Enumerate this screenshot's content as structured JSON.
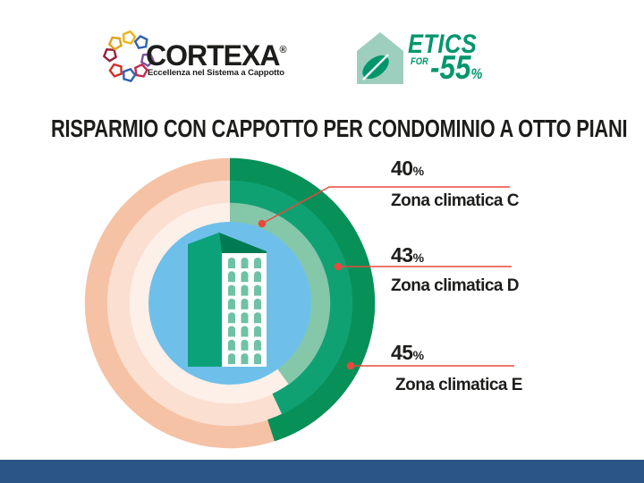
{
  "header": {
    "cortexa": {
      "name": "CORTEXA",
      "registered_mark": "®",
      "tagline": "Eccellenza nel Sistema a Cappotto",
      "pentagon_colors": [
        "#eab51c",
        "#2f62ae",
        "#7c52a1",
        "#c22a50",
        "#2f62ae",
        "#d03028",
        "#971f38",
        "#e0a11b"
      ]
    },
    "etics": {
      "word1": "ETICS",
      "word2": "FOR",
      "word3": "-55",
      "percent_symbol": "%",
      "text_color": "#00966c",
      "house_color": "#9ecfbe",
      "leaf_color": "#00966c"
    }
  },
  "title": "RISPARMIO CON CAPPOTTO PER CONDOMINIO A OTTO PIANI",
  "chart_data": {
    "type": "pie",
    "subtype": "concentric-donut-rings",
    "title": "RISPARMIO CON CAPPOTTO PER CONDOMINIO A OTTO PIANI",
    "unit": "%",
    "start_angle_deg": 0,
    "direction": "clockwise",
    "series": [
      {
        "name": "Zona climatica C",
        "value": 40,
        "ring": "inner",
        "arc_color": "#84c7a9",
        "remainder_color": "#fdf0e8"
      },
      {
        "name": "Zona climatica D",
        "value": 43,
        "ring": "middle",
        "arc_color": "#10a173",
        "remainder_color": "#fbdfd1"
      },
      {
        "name": "Zona climatica E",
        "value": 45,
        "ring": "outer",
        "arc_color": "#079058",
        "remainder_color": "#f5c2a5"
      }
    ],
    "center_color": "#6ec0ea",
    "callout_color": "#e9483d",
    "center_icon": "eight-story-building",
    "legend_position": "right"
  },
  "building": {
    "floors": 8,
    "window_columns": 3,
    "front_color": "#ffffff",
    "side_color": "#0ba179",
    "roof_color": "#007a52",
    "window_color": "#6fc2a4"
  },
  "footer": {
    "bar_color": "#2b5585"
  }
}
